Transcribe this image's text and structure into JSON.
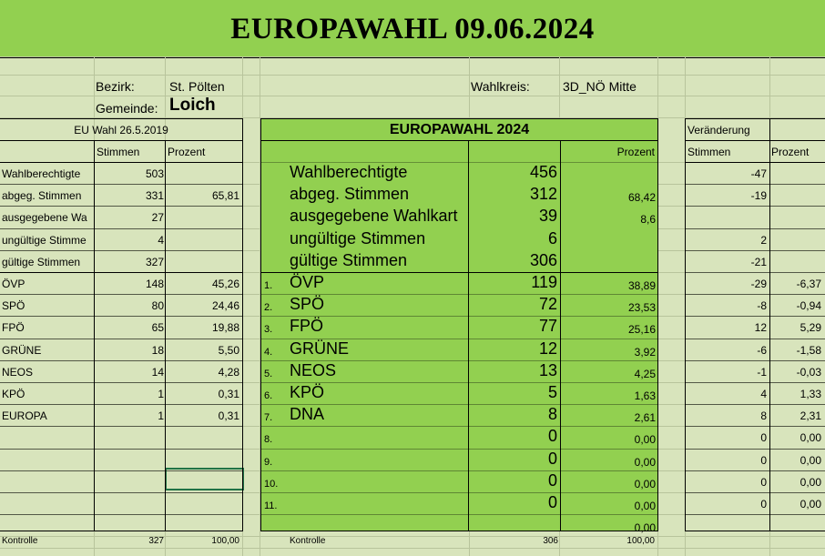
{
  "title": "EUROPAWAHL 09.06.2024",
  "header": {
    "bezirk_label": "Bezirk:",
    "bezirk_value": "St. Pölten",
    "gemeinde_label": "Gemeinde:",
    "gemeinde_value": "Loich",
    "wahlkreis_label": "Wahlkreis:",
    "wahlkreis_value": "3D_NÖ Mitte"
  },
  "colors": {
    "banner": "#92d050",
    "background": "#d8e4bc",
    "panel": "#92d050"
  },
  "eu2019": {
    "title": "EU Wahl 26.5.2019",
    "col_stimmen": "Stimmen",
    "col_prozent": "Prozent",
    "rows": [
      {
        "label": "Wahlberechtigte",
        "stimmen": "503",
        "prozent": ""
      },
      {
        "label": "abgeg. Stimmen",
        "stimmen": "331",
        "prozent": "65,81"
      },
      {
        "label": "ausgegebene Wa",
        "stimmen": "27",
        "prozent": ""
      },
      {
        "label": "ungültige Stimme",
        "stimmen": "4",
        "prozent": ""
      },
      {
        "label": "gültige Stimmen",
        "stimmen": "327",
        "prozent": ""
      },
      {
        "label": "ÖVP",
        "stimmen": "148",
        "prozent": "45,26"
      },
      {
        "label": "SPÖ",
        "stimmen": "80",
        "prozent": "24,46"
      },
      {
        "label": "FPÖ",
        "stimmen": "65",
        "prozent": "19,88"
      },
      {
        "label": "GRÜNE",
        "stimmen": "18",
        "prozent": "5,50"
      },
      {
        "label": "NEOS",
        "stimmen": "14",
        "prozent": "4,28"
      },
      {
        "label": "KPÖ",
        "stimmen": "1",
        "prozent": "0,31"
      },
      {
        "label": "EUROPA",
        "stimmen": "1",
        "prozent": "0,31"
      },
      {
        "label": "",
        "stimmen": "",
        "prozent": ""
      },
      {
        "label": "",
        "stimmen": "",
        "prozent": ""
      },
      {
        "label": "",
        "stimmen": "",
        "prozent": ""
      },
      {
        "label": "",
        "stimmen": "",
        "prozent": ""
      },
      {
        "label": "",
        "stimmen": "",
        "prozent": ""
      }
    ],
    "kontrolle_label": "Kontrolle",
    "kontrolle_stimmen": "327",
    "kontrolle_prozent": "100,00"
  },
  "eu2024": {
    "title": "EUROPAWAHL 2024",
    "col_prozent": "Prozent",
    "rows": [
      {
        "num": "",
        "label": "Wahlberechtigte",
        "stimmen": "456",
        "prozent": ""
      },
      {
        "num": "",
        "label": "abgeg. Stimmen",
        "stimmen": "312",
        "prozent": "68,42"
      },
      {
        "num": "",
        "label": "ausgegebene Wahlkart",
        "stimmen": "39",
        "prozent": "8,6"
      },
      {
        "num": "",
        "label": "ungültige Stimmen",
        "stimmen": "6",
        "prozent": ""
      },
      {
        "num": "",
        "label": "gültige Stimmen",
        "stimmen": "306",
        "prozent": ""
      },
      {
        "num": "1.",
        "label": "ÖVP",
        "stimmen": "119",
        "prozent": "38,89"
      },
      {
        "num": "2.",
        "label": "SPÖ",
        "stimmen": "72",
        "prozent": "23,53"
      },
      {
        "num": "3.",
        "label": "FPÖ",
        "stimmen": "77",
        "prozent": "25,16"
      },
      {
        "num": "4.",
        "label": "GRÜNE",
        "stimmen": "12",
        "prozent": "3,92"
      },
      {
        "num": "5.",
        "label": "NEOS",
        "stimmen": "13",
        "prozent": "4,25"
      },
      {
        "num": "6.",
        "label": "KPÖ",
        "stimmen": "5",
        "prozent": "1,63"
      },
      {
        "num": "7.",
        "label": "DNA",
        "stimmen": "8",
        "prozent": "2,61"
      },
      {
        "num": "8.",
        "label": "",
        "stimmen": "0",
        "prozent": "0,00"
      },
      {
        "num": "9.",
        "label": "",
        "stimmen": "0",
        "prozent": "0,00"
      },
      {
        "num": "10.",
        "label": "",
        "stimmen": "0",
        "prozent": "0,00"
      },
      {
        "num": "11.",
        "label": "",
        "stimmen": "0",
        "prozent": "0,00"
      },
      {
        "num": "",
        "label": "",
        "stimmen": "",
        "prozent": "0,00"
      }
    ],
    "kontrolle_label": "Kontrolle",
    "kontrolle_stimmen": "306",
    "kontrolle_prozent": "100,00"
  },
  "change": {
    "title": "Veränderung",
    "col_stimmen": "Stimmen",
    "col_prozent": "Prozent",
    "rows": [
      {
        "stimmen": "-47",
        "prozent": ""
      },
      {
        "stimmen": "-19",
        "prozent": ""
      },
      {
        "stimmen": "",
        "prozent": ""
      },
      {
        "stimmen": "2",
        "prozent": ""
      },
      {
        "stimmen": "-21",
        "prozent": ""
      },
      {
        "stimmen": "-29",
        "prozent": "-6,37"
      },
      {
        "stimmen": "-8",
        "prozent": "-0,94"
      },
      {
        "stimmen": "12",
        "prozent": "5,29"
      },
      {
        "stimmen": "-6",
        "prozent": "-1,58"
      },
      {
        "stimmen": "-1",
        "prozent": "-0,03"
      },
      {
        "stimmen": "4",
        "prozent": "1,33"
      },
      {
        "stimmen": "8",
        "prozent": "2,31"
      },
      {
        "stimmen": "0",
        "prozent": "0,00"
      },
      {
        "stimmen": "0",
        "prozent": "0,00"
      },
      {
        "stimmen": "0",
        "prozent": "0,00"
      },
      {
        "stimmen": "0",
        "prozent": "0,00"
      },
      {
        "stimmen": "",
        "prozent": ""
      }
    ]
  }
}
